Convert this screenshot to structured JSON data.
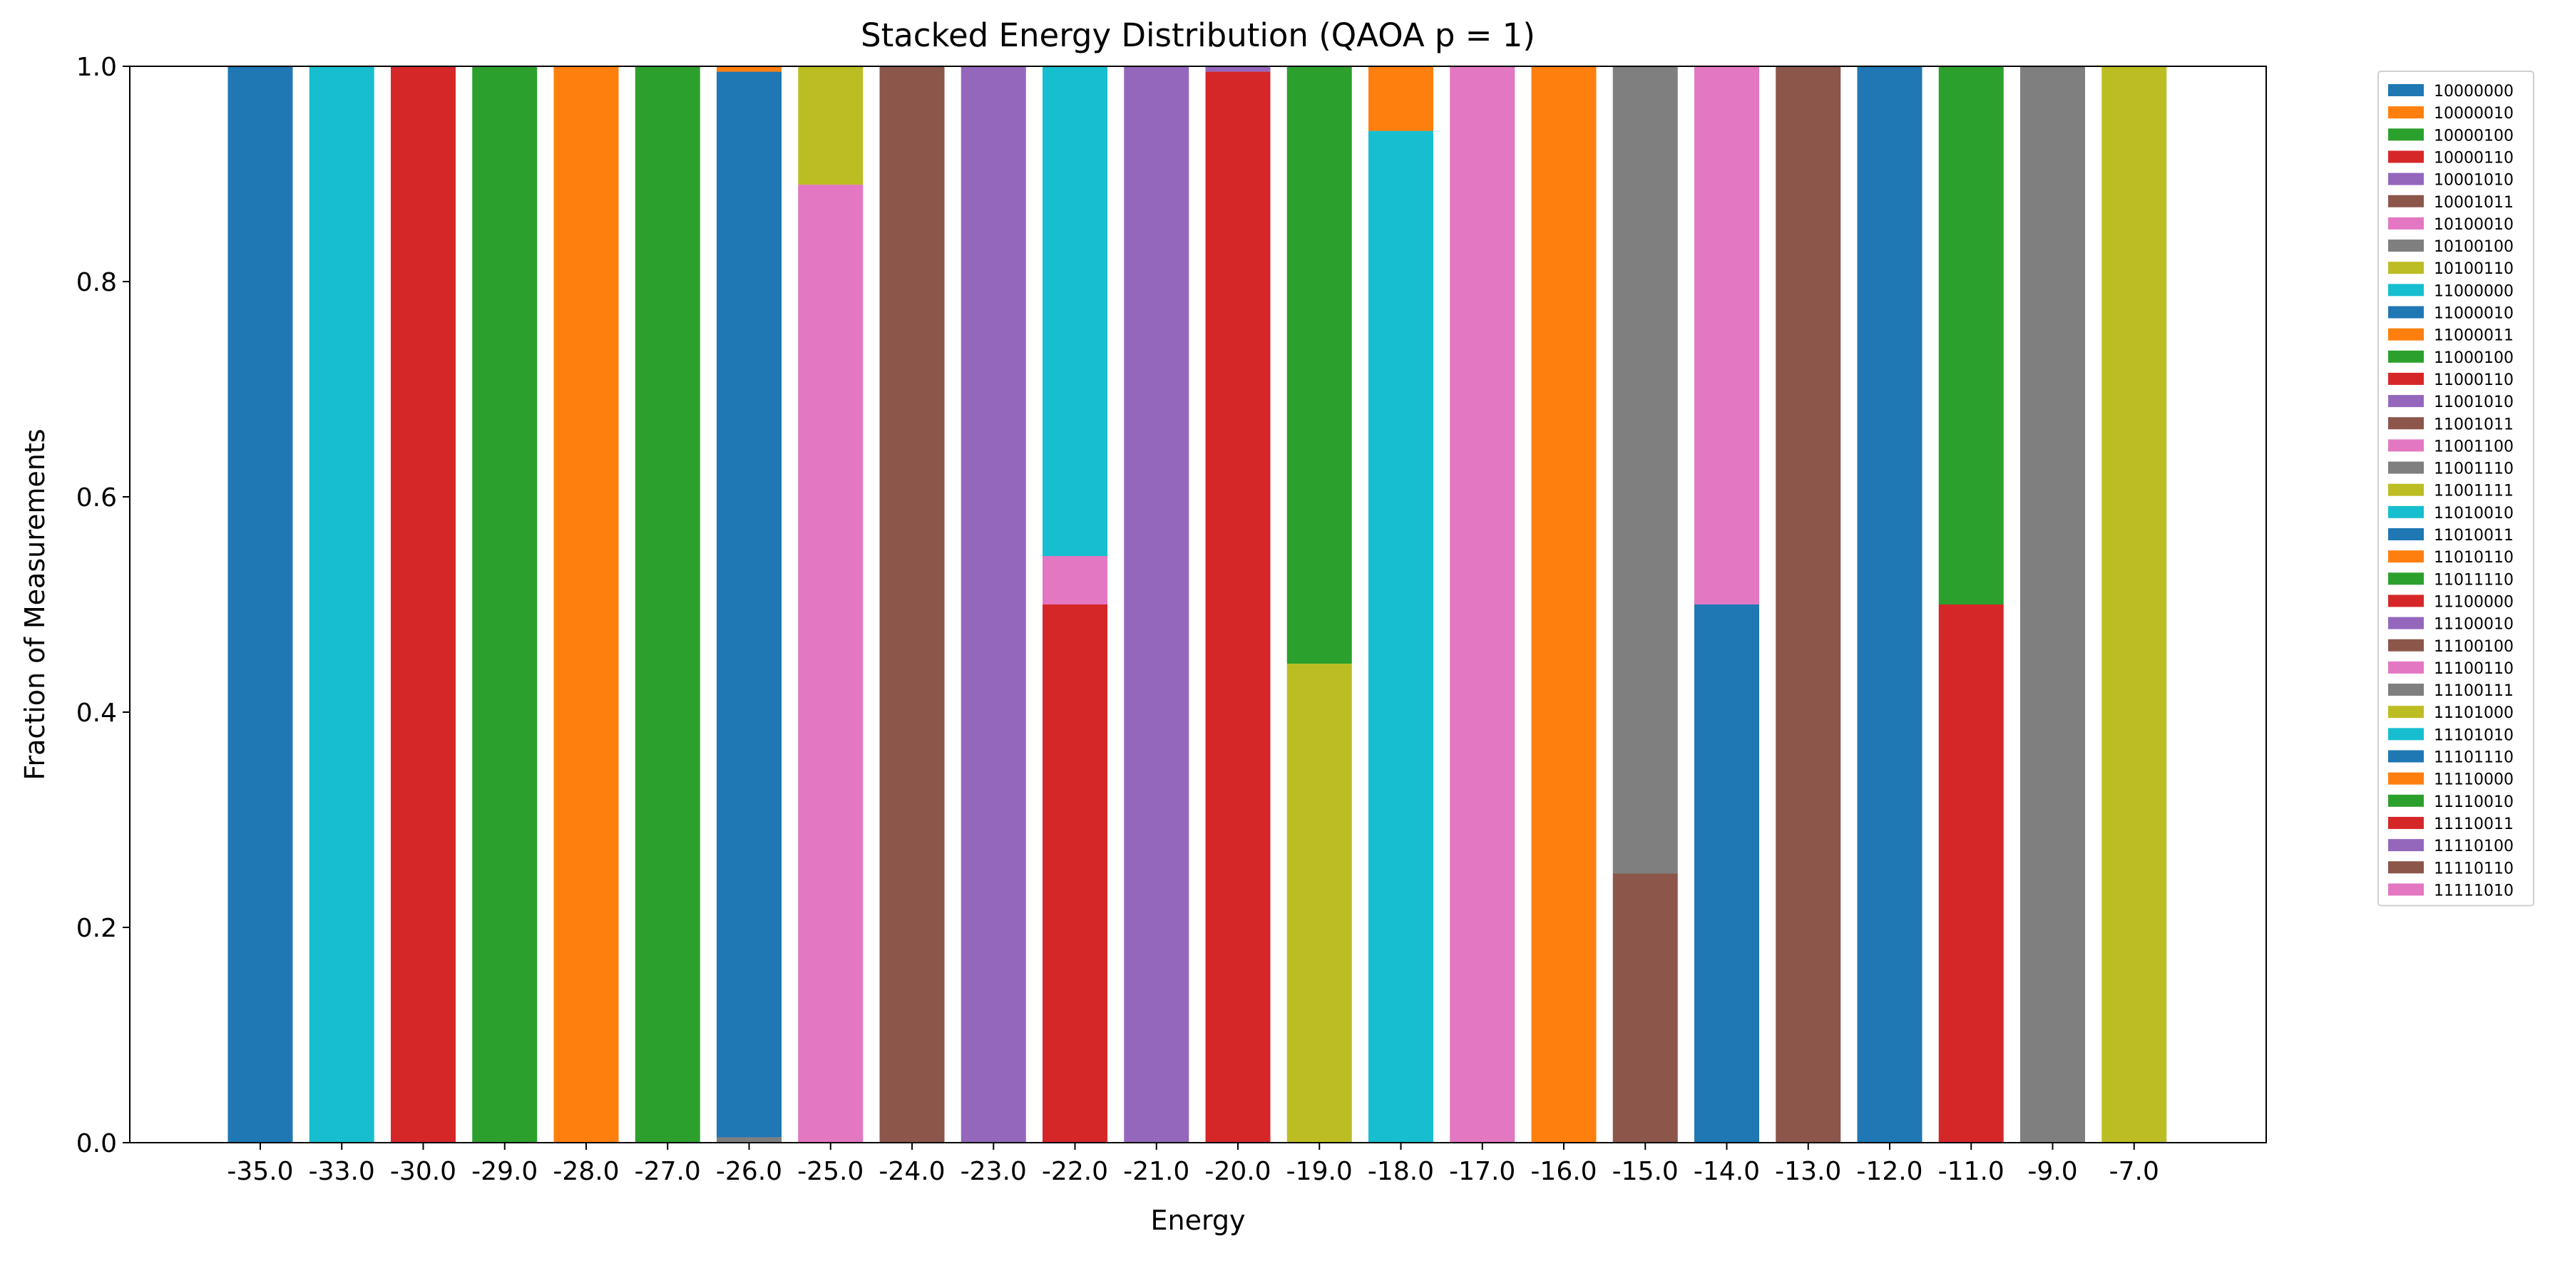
{
  "chart_data": {
    "type": "bar",
    "stacked": true,
    "title": "Stacked Energy Distribution (QAOA p = 1)",
    "xlabel": "Energy",
    "ylabel": "Fraction of Measurements",
    "ylim": [
      0,
      1.0
    ],
    "yticks": [
      "0.0",
      "0.2",
      "0.4",
      "0.6",
      "0.8",
      "1.0"
    ],
    "categories": [
      "-35.0",
      "-33.0",
      "-30.0",
      "-29.0",
      "-28.0",
      "-27.0",
      "-26.0",
      "-25.0",
      "-24.0",
      "-23.0",
      "-22.0",
      "-21.0",
      "-20.0",
      "-19.0",
      "-18.0",
      "-17.0",
      "-16.0",
      "-15.0",
      "-14.0",
      "-13.0",
      "-12.0",
      "-11.0",
      "-9.0",
      "-7.0"
    ],
    "grid": false,
    "legend_position": "outside-right",
    "series": [
      {
        "name": "10000000",
        "color": "#1f77b4",
        "values": [
          1.0,
          0,
          0,
          0,
          0,
          0,
          0,
          0,
          0,
          0,
          0,
          0,
          0,
          0,
          0,
          0,
          0,
          0,
          0,
          0,
          0,
          0,
          0,
          0
        ]
      },
      {
        "name": "10000010",
        "color": "#ff7f0e",
        "values": [
          0,
          0,
          0,
          0,
          1.0,
          0,
          0,
          0,
          0,
          0,
          0,
          0,
          0,
          0,
          0,
          0,
          0,
          0,
          0,
          0,
          0,
          0,
          0,
          0
        ]
      },
      {
        "name": "10000100",
        "color": "#2ca02c",
        "values": [
          0,
          0,
          0,
          1.0,
          0,
          0,
          0,
          0,
          0,
          0,
          0,
          0,
          0,
          0,
          0,
          0,
          0,
          0,
          0,
          0,
          0,
          0,
          0,
          0
        ]
      },
      {
        "name": "10000110",
        "color": "#d62728",
        "values": [
          0,
          0,
          1.0,
          0,
          0,
          0,
          0,
          0,
          0,
          0,
          0,
          0,
          0,
          0,
          0,
          0,
          0,
          0,
          0,
          0,
          0,
          0,
          0,
          0
        ]
      },
      {
        "name": "10001010",
        "color": "#9467bd",
        "values": [
          0,
          0,
          0,
          0,
          0,
          0,
          0,
          0,
          0,
          1.0,
          0,
          0,
          0,
          0,
          0,
          0,
          0,
          0,
          0,
          0,
          0,
          0,
          0,
          0
        ]
      },
      {
        "name": "10001011",
        "color": "#8c564b",
        "values": [
          0,
          0,
          0,
          0,
          0,
          0,
          0,
          0,
          1.0,
          0,
          0,
          0,
          0,
          0,
          0,
          0,
          0,
          0,
          0,
          0,
          0,
          0,
          0,
          0
        ]
      },
      {
        "name": "10100010",
        "color": "#e377c2",
        "values": [
          0,
          0,
          0,
          0,
          0,
          0,
          0,
          0.89,
          0,
          0,
          0,
          0,
          0,
          0,
          0,
          0,
          0,
          0,
          0,
          0,
          0,
          0,
          0,
          0
        ]
      },
      {
        "name": "10100100",
        "color": "#7f7f7f",
        "values": [
          0,
          0,
          0,
          0,
          0,
          0,
          0.005,
          0,
          0,
          0,
          0,
          0,
          0,
          0,
          0,
          0,
          0,
          0,
          0,
          0,
          0,
          0,
          0,
          0
        ]
      },
      {
        "name": "10100110",
        "color": "#bcbd22",
        "values": [
          0,
          0,
          0,
          0,
          0,
          0,
          0,
          0.11,
          0,
          0,
          0,
          0,
          0,
          0,
          0,
          0,
          0,
          0,
          0,
          0,
          0,
          0,
          0,
          0
        ]
      },
      {
        "name": "11000000",
        "color": "#17becf",
        "values": [
          0,
          1.0,
          0,
          0,
          0,
          0,
          0,
          0,
          0,
          0,
          0,
          0,
          0,
          0,
          0,
          0,
          0,
          0,
          0,
          0,
          0,
          0,
          0,
          0
        ]
      },
      {
        "name": "11000010",
        "color": "#1f77b4",
        "values": [
          0,
          0,
          0,
          0,
          0,
          0,
          0.99,
          0,
          0,
          0,
          0,
          0,
          0,
          0,
          0,
          0,
          0,
          0,
          0,
          0,
          0,
          0,
          0,
          0
        ]
      },
      {
        "name": "11000011",
        "color": "#ff7f0e",
        "values": [
          0,
          0,
          0,
          0,
          0,
          0,
          0.005,
          0,
          0,
          0,
          0,
          0,
          0,
          0,
          0,
          0,
          0,
          0,
          0,
          0,
          0,
          0,
          0,
          0
        ]
      },
      {
        "name": "11000100",
        "color": "#2ca02c",
        "values": [
          0,
          0,
          0,
          0,
          0,
          1.0,
          0,
          0,
          0,
          0,
          0,
          0,
          0,
          0,
          0,
          0,
          0,
          0,
          0,
          0,
          0,
          0,
          0,
          0
        ]
      },
      {
        "name": "11000110",
        "color": "#d62728",
        "values": [
          0,
          0,
          0,
          0,
          0,
          0,
          0,
          0,
          0,
          0,
          0.5,
          0,
          0.995,
          0,
          0,
          0,
          0,
          0,
          0,
          0,
          0,
          0,
          0,
          0
        ]
      },
      {
        "name": "11001010",
        "color": "#9467bd",
        "values": [
          0,
          0,
          0,
          0,
          0,
          0,
          0,
          0,
          0,
          0,
          0,
          1.0,
          0.005,
          0,
          0,
          0,
          0,
          0,
          0,
          0,
          0,
          0,
          0,
          0
        ]
      },
      {
        "name": "11001011",
        "color": "#8c564b",
        "values": [
          0,
          0,
          0,
          0,
          0,
          0,
          0,
          0,
          0,
          0,
          0,
          0,
          0,
          0,
          0,
          0,
          0,
          0.25,
          0,
          0,
          0,
          0,
          0,
          0
        ]
      },
      {
        "name": "11001100",
        "color": "#e377c2",
        "values": [
          0,
          0,
          0,
          0,
          0,
          0,
          0,
          0,
          0,
          0,
          0.045,
          0,
          0,
          0,
          0,
          1.0,
          0,
          0,
          0,
          0,
          0,
          0,
          0,
          0
        ]
      },
      {
        "name": "11001110",
        "color": "#7f7f7f",
        "values": [
          0,
          0,
          0,
          0,
          0,
          0,
          0,
          0,
          0,
          0,
          0,
          0,
          0,
          0,
          0,
          0,
          0,
          0.75,
          0,
          0,
          0,
          0,
          0,
          0
        ]
      },
      {
        "name": "11001111",
        "color": "#bcbd22",
        "values": [
          0,
          0,
          0,
          0,
          0,
          0,
          0,
          0,
          0,
          0,
          0,
          0,
          0,
          0.445,
          0,
          0,
          0,
          0,
          0,
          0,
          0,
          0,
          0,
          0
        ]
      },
      {
        "name": "11010010",
        "color": "#17becf",
        "values": [
          0,
          0,
          0,
          0,
          0,
          0,
          0,
          0,
          0,
          0,
          0.455,
          0,
          0,
          0,
          0.94,
          0,
          0,
          0,
          0,
          0,
          0,
          0,
          0,
          0
        ]
      },
      {
        "name": "11010011",
        "color": "#1f77b4",
        "values": [
          0,
          0,
          0,
          0,
          0,
          0,
          0,
          0,
          0,
          0,
          0,
          0,
          0,
          0,
          0,
          0,
          0,
          0,
          0.5,
          0,
          0,
          0,
          0,
          0
        ]
      },
      {
        "name": "11010110",
        "color": "#ff7f0e",
        "values": [
          0,
          0,
          0,
          0,
          0,
          0,
          0,
          0,
          0,
          0,
          0,
          0,
          0,
          0,
          0.06,
          0,
          0,
          0,
          0,
          0,
          0,
          0,
          0,
          0
        ]
      },
      {
        "name": "11011110",
        "color": "#2ca02c",
        "values": [
          0,
          0,
          0,
          0,
          0,
          0,
          0,
          0,
          0,
          0,
          0,
          0,
          0,
          0.555,
          0,
          0,
          0,
          0,
          0,
          0,
          0,
          0,
          0,
          0
        ]
      },
      {
        "name": "11100000",
        "color": "#d62728",
        "values": [
          0,
          0,
          0,
          0,
          0,
          0,
          0,
          0,
          0,
          0,
          0,
          0,
          0,
          0,
          0,
          0,
          0,
          0,
          0,
          0,
          0,
          0.5,
          0,
          0
        ]
      },
      {
        "name": "11100010",
        "color": "#9467bd",
        "values": [
          0,
          0,
          0,
          0,
          0,
          0,
          0,
          0,
          0,
          0,
          0,
          0,
          0,
          0,
          0,
          0,
          0,
          0,
          0,
          0,
          0,
          0,
          0,
          0
        ]
      },
      {
        "name": "11100100",
        "color": "#8c564b",
        "values": [
          0,
          0,
          0,
          0,
          0,
          0,
          0,
          0,
          0,
          0,
          0,
          0,
          0,
          0,
          0,
          0,
          0,
          0,
          0,
          1.0,
          0,
          0,
          0,
          0
        ]
      },
      {
        "name": "11100110",
        "color": "#e377c2",
        "values": [
          0,
          0,
          0,
          0,
          0,
          0,
          0,
          0,
          0,
          0,
          0,
          0,
          0,
          0,
          0,
          0,
          0,
          0,
          0.5,
          0,
          0,
          0,
          0,
          0
        ]
      },
      {
        "name": "11100111",
        "color": "#7f7f7f",
        "values": [
          0,
          0,
          0,
          0,
          0,
          0,
          0,
          0,
          0,
          0,
          0,
          0,
          0,
          0,
          0,
          0,
          0,
          0,
          0,
          0,
          0,
          0,
          1.0,
          0
        ]
      },
      {
        "name": "11101000",
        "color": "#bcbd22",
        "values": [
          0,
          0,
          0,
          0,
          0,
          0,
          0,
          0,
          0,
          0,
          0,
          0,
          0,
          0,
          0,
          0,
          0,
          0,
          0,
          0,
          0,
          0,
          0,
          1.0
        ]
      },
      {
        "name": "11101010",
        "color": "#17becf",
        "values": [
          0,
          0,
          0,
          0,
          0,
          0,
          0,
          0,
          0,
          0,
          0,
          0,
          0,
          0,
          0,
          0,
          0,
          0,
          0,
          0,
          0,
          0,
          0,
          0
        ]
      },
      {
        "name": "11101110",
        "color": "#1f77b4",
        "values": [
          0,
          0,
          0,
          0,
          0,
          0,
          0,
          0,
          0,
          0,
          0,
          0,
          0,
          0,
          0,
          0,
          0,
          0,
          0,
          0,
          1.0,
          0,
          0,
          0
        ]
      },
      {
        "name": "11110000",
        "color": "#ff7f0e",
        "values": [
          0,
          0,
          0,
          0,
          0,
          0,
          0,
          0,
          0,
          0,
          0,
          0,
          0,
          0,
          0,
          0,
          1.0,
          0,
          0,
          0,
          0,
          0,
          0,
          0
        ]
      },
      {
        "name": "11110010",
        "color": "#2ca02c",
        "values": [
          0,
          0,
          0,
          0,
          0,
          0,
          0,
          0,
          0,
          0,
          0,
          0,
          0,
          0,
          0,
          0,
          0,
          0,
          0,
          0,
          0,
          0.5,
          0,
          0
        ]
      },
      {
        "name": "11110011",
        "color": "#d62728",
        "values": [
          0,
          0,
          0,
          0,
          0,
          0,
          0,
          0,
          0,
          0,
          0,
          0,
          0,
          0,
          0,
          0,
          0,
          0,
          0,
          0,
          0,
          0,
          0,
          0
        ]
      },
      {
        "name": "11110100",
        "color": "#9467bd",
        "values": [
          0,
          0,
          0,
          0,
          0,
          0,
          0,
          0,
          0,
          0,
          0,
          0,
          0,
          0,
          0,
          0,
          0,
          0,
          0,
          0,
          0,
          0,
          0,
          0
        ]
      },
      {
        "name": "11110110",
        "color": "#8c564b",
        "values": [
          0,
          0,
          0,
          0,
          0,
          0,
          0,
          0,
          0,
          0,
          0,
          0,
          0,
          0,
          0,
          0,
          0,
          0,
          0,
          0,
          0,
          0,
          0,
          0
        ]
      },
      {
        "name": "11111010",
        "color": "#e377c2",
        "values": [
          0,
          0,
          0,
          0,
          0,
          0,
          0,
          0,
          0,
          0,
          0,
          0,
          0,
          0,
          0,
          0,
          0,
          0,
          0,
          0,
          0,
          0,
          0,
          0
        ]
      }
    ]
  }
}
